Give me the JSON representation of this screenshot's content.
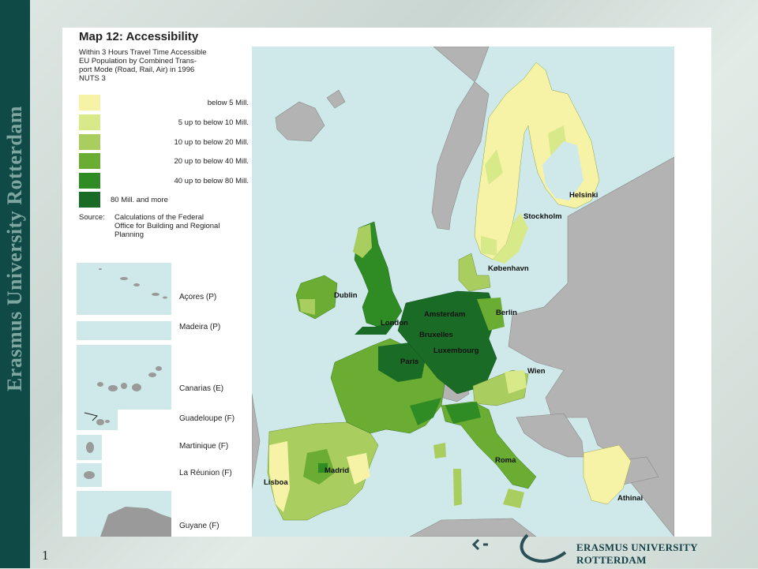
{
  "side_title": "Erasmus University Rotterdam",
  "slide_number": "1",
  "footer_brand": "ERASMUS UNIVERSITY ROTTERDAM",
  "map": {
    "title": "Map 12: Accessibility",
    "subtitle": "Within 3 Hours Travel Time Accessible\nEU Population by Combined Trans-\nport Mode (Road, Rail, Air) in 1996\nNUTS 3",
    "legend": [
      {
        "label": "below  5 Mill.",
        "color": "#f6f3a6"
      },
      {
        "label": "5 up to below 10 Mill.",
        "color": "#d8e98a"
      },
      {
        "label": "10 up to below 20 Mill.",
        "color": "#a9cd5e"
      },
      {
        "label": "20 up to below 40 Mill.",
        "color": "#6aad32"
      },
      {
        "label": "40 up to below 80 Mill.",
        "color": "#2f8c25"
      },
      {
        "label": "80 Mill. and more",
        "color": "#1a6b26"
      }
    ],
    "source_key": "Source:",
    "source_text": "Calculations of the Federal\nOffice for Building and Regional\nPlanning",
    "insets": [
      "Açores (P)",
      "Madeira (P)",
      "Canarias (E)",
      "Guadeloupe (F)",
      "Martinique (F)",
      "La Réunion (F)",
      "Guyane (F)"
    ],
    "cities": [
      "Helsinki",
      "Stockholm",
      "København",
      "Dublin",
      "Berlin",
      "Amsterdam",
      "London",
      "Bruxelles",
      "Luxembourg",
      "Paris",
      "Wien",
      "Roma",
      "Madrid",
      "Lisboa",
      "Athinai"
    ],
    "colors": {
      "sea": "#cfe9ea",
      "non_eu": "#b3b3b3",
      "border": "#8a8a8a"
    }
  }
}
